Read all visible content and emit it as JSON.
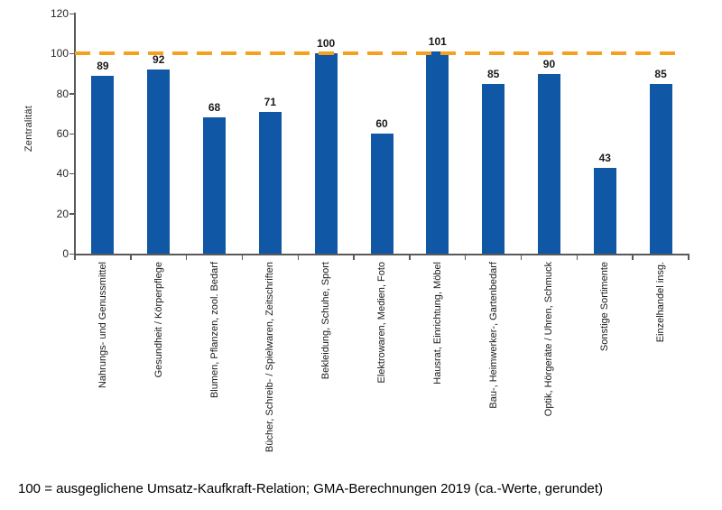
{
  "chart_data": {
    "type": "bar",
    "title": "",
    "xlabel": "",
    "ylabel": "Zentralität",
    "ylim": [
      0,
      120
    ],
    "yticks": [
      0,
      20,
      40,
      60,
      80,
      100,
      120
    ],
    "grid": false,
    "legend": "none",
    "bar_color": "#1057A5",
    "reference_line": {
      "value": 100,
      "style": "dashed",
      "color": "#F6A11E"
    },
    "categories": [
      "Nahrungs- und Genussmittel",
      "Gesundheit / Körperpflege",
      "Blumen, Pflanzen, zool. Bedarf",
      "Bücher, Schreib- / Spielwaren, Zeitschriften",
      "Bekleidung, Schuhe, Sport",
      "Elektrowaren, Medien, Foto",
      "Hausrat, Einrichtung, Möbel",
      "Bau-, Heimwerker-, Gartenbedarf",
      "Optik, Hörgeräte / Uhren, Schmuck",
      "Sonstige Sortimente",
      "Einzelhandel insg."
    ],
    "values": [
      89,
      92,
      68,
      71,
      100,
      60,
      101,
      85,
      90,
      43,
      85
    ]
  },
  "caption": "100 = ausgeglichene Umsatz-Kaufkraft-Relation; GMA-Berechnungen 2019 (ca.-Werte, gerundet)"
}
